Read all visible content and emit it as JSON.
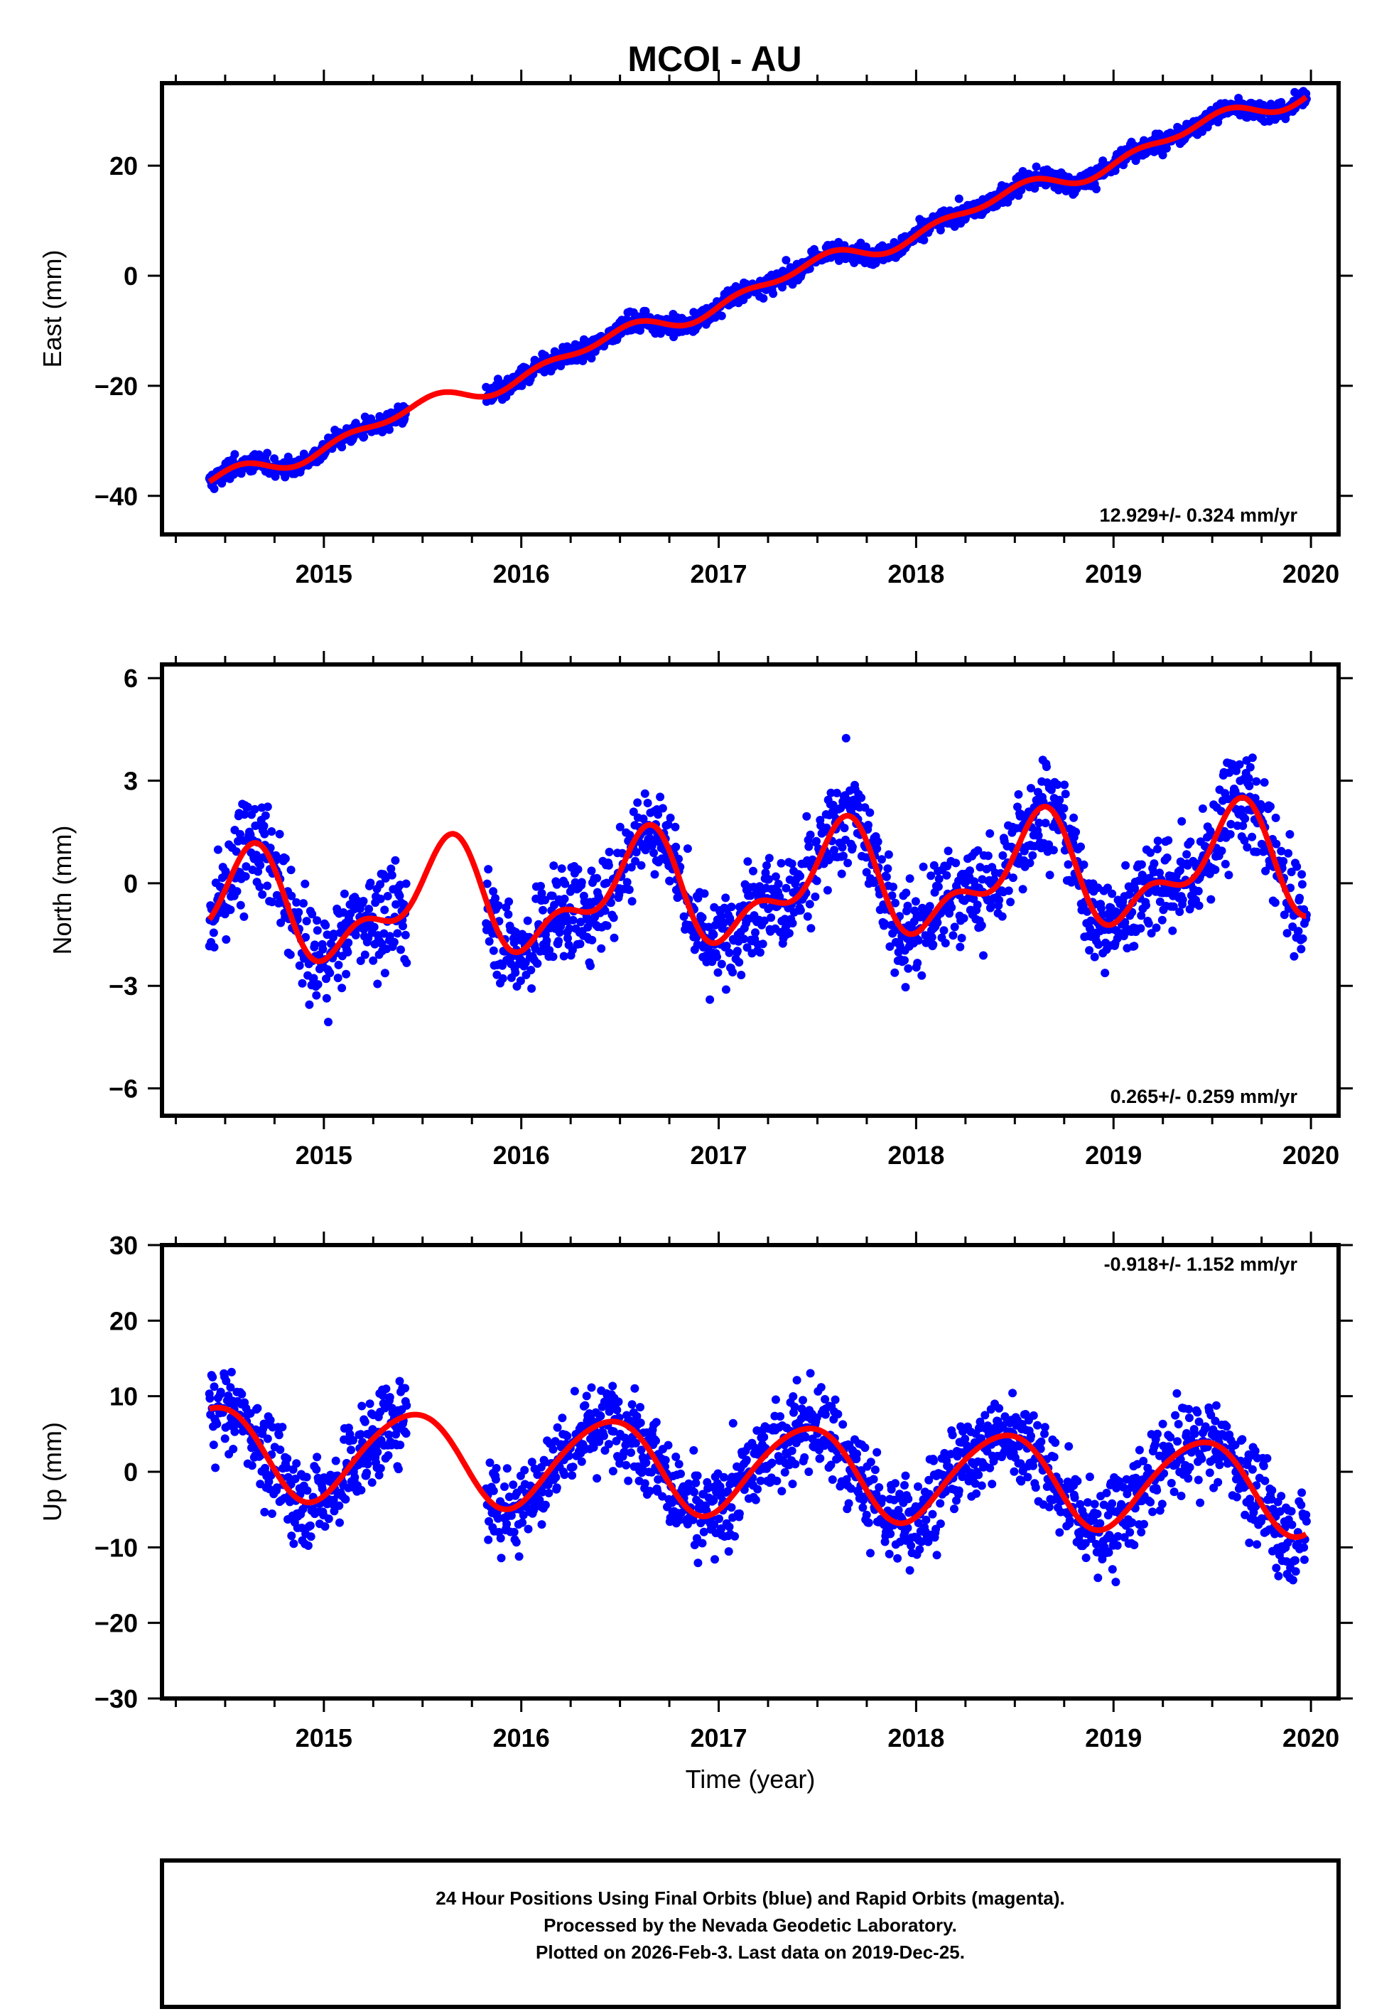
{
  "colors": {
    "points": "#0000ff",
    "fit": "#ff0000",
    "frame": "#000000"
  },
  "chart_data": {
    "type": "scatter",
    "title": "MCOI - AU",
    "xlabel": "Time (year)",
    "xlim": [
      2014.18,
      2020.14
    ],
    "x_ticks": [
      "2015",
      "2016",
      "2017",
      "2018",
      "2019",
      "2020"
    ],
    "x_tick_values": [
      2015,
      2016,
      2017,
      2018,
      2019,
      2020
    ],
    "data_start": 2014.42,
    "data_gap": [
      2015.42,
      2015.82
    ],
    "data_end": 2019.98,
    "panels": [
      {
        "name": "east",
        "ylabel": "East (mm)",
        "ylim": [
          -47,
          35
        ],
        "y_ticks": [
          "20",
          "0",
          "−20",
          "−40"
        ],
        "y_tick_values": [
          20,
          0,
          -20,
          -40
        ],
        "rate_label": "12.929+/- 0.324 mm/yr",
        "rate_position": "bottom-right",
        "trend_mm_per_yr": 12.929,
        "intercept_mm_at_2017": -4.8,
        "annual_amp_mm": 1.3,
        "semiannual_amp_mm": 1.0,
        "scatter_mm": 1.5
      },
      {
        "name": "north",
        "ylabel": "North (mm)",
        "ylim": [
          -6.8,
          6.4
        ],
        "y_ticks": [
          "6",
          "3",
          "0",
          "−3",
          "−6"
        ],
        "y_tick_values": [
          6,
          3,
          0,
          -3,
          -6
        ],
        "rate_label": "0.265+/- 0.259 mm/yr",
        "rate_position": "bottom-right",
        "trend_mm_per_yr": 0.265,
        "intercept_mm_at_2017": -0.2,
        "annual_amp_mm": 1.35,
        "semiannual_amp_mm": 0.75,
        "scatter_mm": 1.2
      },
      {
        "name": "up",
        "ylabel": "Up (mm)",
        "ylim": [
          -30,
          30
        ],
        "y_ticks": [
          "30",
          "20",
          "10",
          "0",
          "−10",
          "−20",
          "−30"
        ],
        "y_tick_values": [
          30,
          20,
          10,
          0,
          -10,
          -20,
          -30
        ],
        "rate_label": "-0.918+/- 1.152 mm/yr",
        "rate_position": "top-right",
        "trend_mm_per_yr": -0.918,
        "intercept_mm_at_2017": 0.5,
        "annual_amp_mm": 6.0,
        "semiannual_amp_mm": 0.6,
        "scatter_mm": 5.0
      }
    ],
    "legend": "none",
    "grid": false
  },
  "footer": {
    "line1": "24 Hour Positions Using Final Orbits (blue) and Rapid Orbits (magenta).",
    "line2": "Processed by the Nevada Geodetic Laboratory.",
    "line3": "Plotted on 2026-Feb-3. Last data on 2019-Dec-25."
  }
}
